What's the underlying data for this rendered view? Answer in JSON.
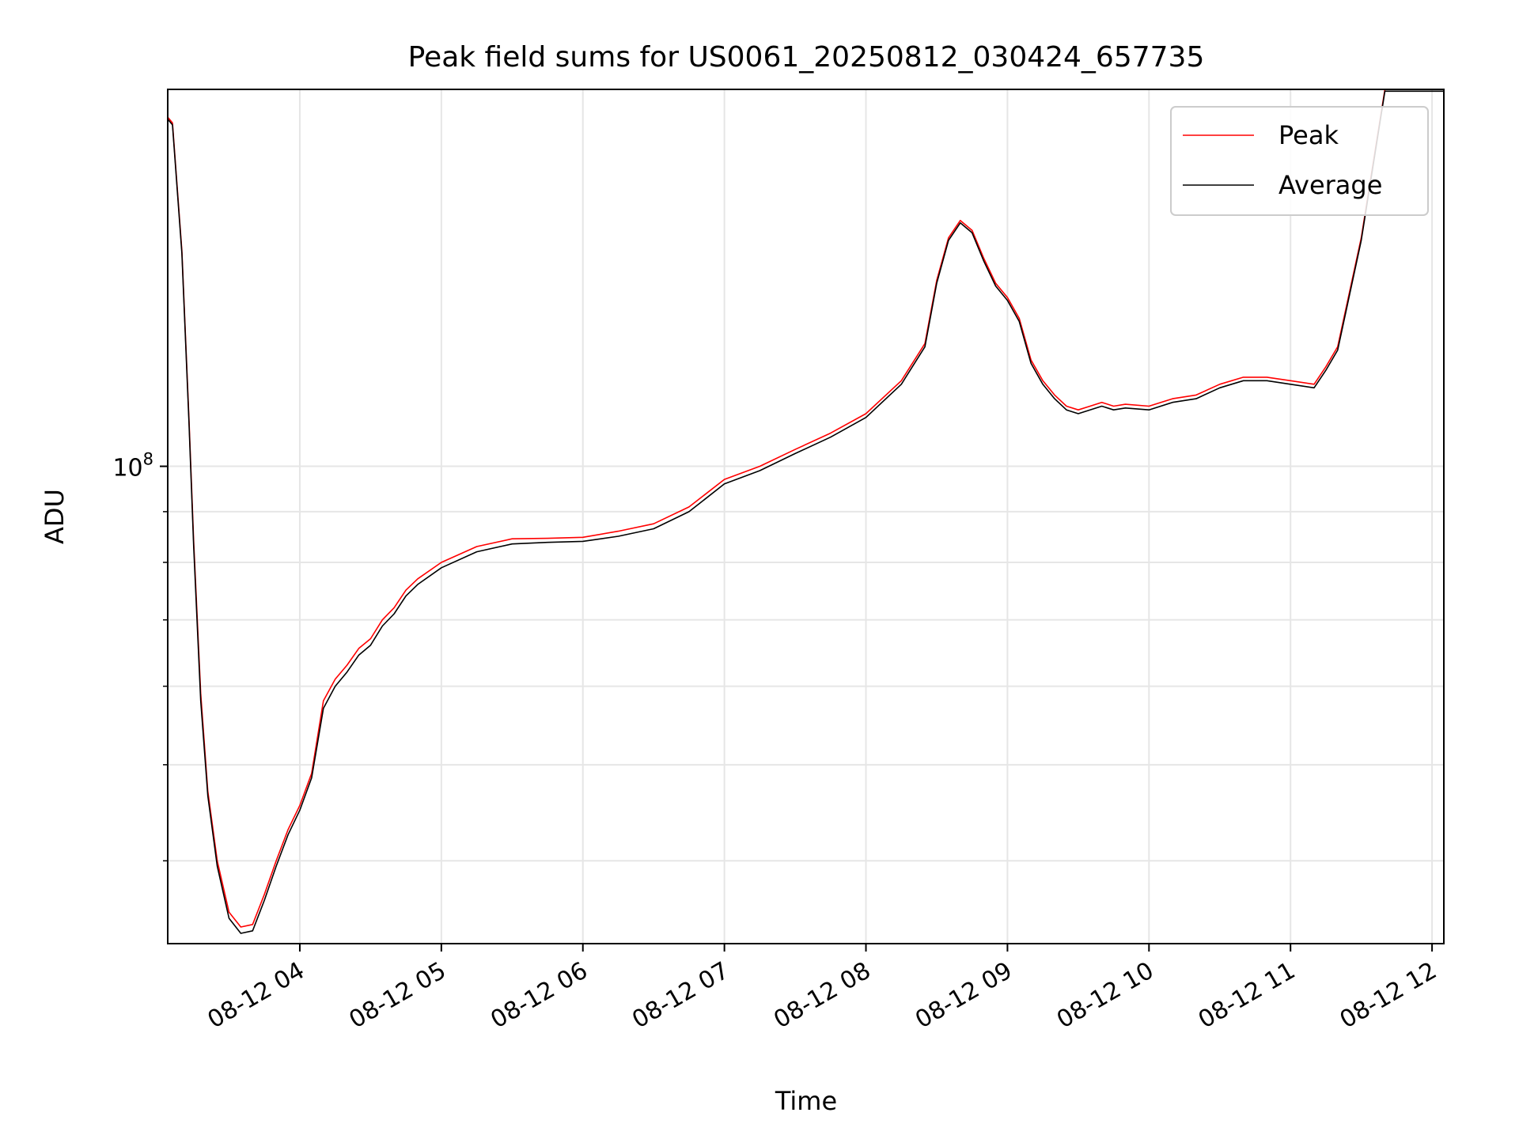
{
  "chart_data": {
    "type": "line",
    "title": "Peak field sums for US0061_20250812_030424_657735",
    "xlabel": "Time",
    "ylabel": "ADU",
    "yscale": "log",
    "ylim": [
      33000000,
      240000000
    ],
    "xlim": [
      "08-12 03:04",
      "08-12 12:05"
    ],
    "grid": true,
    "legend_position": "top-right",
    "x_ticks": [
      "08-12 04",
      "08-12 05",
      "08-12 06",
      "08-12 07",
      "08-12 08",
      "08-12 09",
      "08-12 10",
      "08-12 11",
      "08-12 12"
    ],
    "y_ticks": [
      {
        "value": 100000000,
        "base": "10",
        "exp": "8"
      }
    ],
    "y_minor_ticks": [
      40000000,
      50000000,
      60000000,
      70000000,
      80000000,
      90000000
    ],
    "series": [
      {
        "name": "Peak",
        "color": "#ff0000",
        "x": [
          "08-12 03:04",
          "08-12 03:06",
          "08-12 03:10",
          "08-12 03:13",
          "08-12 03:15",
          "08-12 03:18",
          "08-12 03:21",
          "08-12 03:25",
          "08-12 03:30",
          "08-12 03:35",
          "08-12 03:40",
          "08-12 03:45",
          "08-12 03:50",
          "08-12 03:55",
          "08-12 04:00",
          "08-12 04:05",
          "08-12 04:10",
          "08-12 04:15",
          "08-12 04:20",
          "08-12 04:25",
          "08-12 04:30",
          "08-12 04:35",
          "08-12 04:40",
          "08-12 04:45",
          "08-12 04:50",
          "08-12 05:00",
          "08-12 05:15",
          "08-12 05:30",
          "08-12 05:45",
          "08-12 06:00",
          "08-12 06:15",
          "08-12 06:30",
          "08-12 06:45",
          "08-12 07:00",
          "08-12 07:15",
          "08-12 07:30",
          "08-12 07:45",
          "08-12 08:00",
          "08-12 08:15",
          "08-12 08:25",
          "08-12 08:30",
          "08-12 08:35",
          "08-12 08:40",
          "08-12 08:45",
          "08-12 08:50",
          "08-12 08:55",
          "08-12 09:00",
          "08-12 09:05",
          "08-12 09:10",
          "08-12 09:15",
          "08-12 09:20",
          "08-12 09:25",
          "08-12 09:30",
          "08-12 09:35",
          "08-12 09:40",
          "08-12 09:45",
          "08-12 09:50",
          "08-12 10:00",
          "08-12 10:10",
          "08-12 10:20",
          "08-12 10:30",
          "08-12 10:40",
          "08-12 10:50",
          "08-12 11:00",
          "08-12 11:10",
          "08-12 11:15",
          "08-12 11:20",
          "08-12 11:30",
          "08-12 11:40",
          "08-12 11:45",
          "08-12 11:50",
          "08-12 11:55",
          "08-12 12:00",
          "08-12 12:05"
        ],
        "values": [
          225000000,
          222000000,
          165000000,
          112000000,
          84000000,
          59000000,
          47000000,
          40000000,
          35500000,
          34300000,
          34500000,
          37000000,
          40000000,
          43000000,
          45500000,
          49000000,
          58000000,
          61000000,
          63000000,
          65500000,
          67000000,
          70000000,
          72000000,
          75000000,
          77000000,
          80000000,
          83000000,
          84500000,
          84600000,
          84800000,
          86000000,
          87500000,
          91000000,
          97000000,
          100000000,
          104000000,
          108000000,
          113000000,
          122000000,
          133000000,
          154000000,
          170000000,
          177000000,
          173000000,
          162000000,
          153000000,
          148000000,
          141000000,
          128000000,
          122000000,
          118000000,
          115000000,
          114000000,
          115000000,
          116000000,
          115000000,
          115500000,
          115000000,
          117000000,
          118000000,
          121000000,
          123000000,
          123000000,
          122000000,
          121000000,
          126000000,
          132000000,
          170000000,
          240000000,
          240000000,
          240000000,
          240000000,
          240000000,
          240000000
        ]
      },
      {
        "name": "Average",
        "color": "#000000",
        "x": [
          "08-12 03:04",
          "08-12 03:06",
          "08-12 03:10",
          "08-12 03:13",
          "08-12 03:15",
          "08-12 03:18",
          "08-12 03:21",
          "08-12 03:25",
          "08-12 03:30",
          "08-12 03:35",
          "08-12 03:40",
          "08-12 03:45",
          "08-12 03:50",
          "08-12 03:55",
          "08-12 04:00",
          "08-12 04:05",
          "08-12 04:10",
          "08-12 04:15",
          "08-12 04:20",
          "08-12 04:25",
          "08-12 04:30",
          "08-12 04:35",
          "08-12 04:40",
          "08-12 04:45",
          "08-12 04:50",
          "08-12 05:00",
          "08-12 05:15",
          "08-12 05:30",
          "08-12 05:45",
          "08-12 06:00",
          "08-12 06:15",
          "08-12 06:30",
          "08-12 06:45",
          "08-12 07:00",
          "08-12 07:15",
          "08-12 07:30",
          "08-12 07:45",
          "08-12 08:00",
          "08-12 08:15",
          "08-12 08:25",
          "08-12 08:30",
          "08-12 08:35",
          "08-12 08:40",
          "08-12 08:45",
          "08-12 08:50",
          "08-12 08:55",
          "08-12 09:00",
          "08-12 09:05",
          "08-12 09:10",
          "08-12 09:15",
          "08-12 09:20",
          "08-12 09:25",
          "08-12 09:30",
          "08-12 09:35",
          "08-12 09:40",
          "08-12 09:45",
          "08-12 09:50",
          "08-12 10:00",
          "08-12 10:10",
          "08-12 10:20",
          "08-12 10:30",
          "08-12 10:40",
          "08-12 10:50",
          "08-12 11:00",
          "08-12 11:10",
          "08-12 11:15",
          "08-12 11:20",
          "08-12 11:30",
          "08-12 11:40",
          "08-12 11:45",
          "08-12 11:50",
          "08-12 11:55",
          "08-12 12:00",
          "08-12 12:05"
        ],
        "values": [
          224000000,
          221000000,
          164000000,
          111000000,
          83000000,
          58000000,
          46500000,
          39500000,
          35000000,
          33800000,
          34000000,
          36500000,
          39500000,
          42500000,
          45000000,
          48500000,
          57000000,
          60000000,
          62000000,
          64500000,
          66000000,
          69000000,
          71000000,
          74000000,
          76000000,
          79000000,
          82000000,
          83500000,
          83800000,
          84000000,
          85000000,
          86500000,
          90000000,
          96000000,
          99000000,
          103000000,
          107000000,
          112000000,
          121000000,
          132000000,
          153000000,
          169000000,
          176000000,
          172000000,
          161000000,
          152000000,
          147000000,
          140000000,
          127000000,
          121000000,
          117000000,
          114000000,
          113000000,
          114000000,
          115000000,
          114000000,
          114500000,
          114000000,
          116000000,
          117000000,
          120000000,
          122000000,
          122000000,
          121000000,
          120000000,
          125000000,
          131000000,
          169000000,
          239000000,
          239000000,
          239000000,
          239000000,
          239000000,
          239000000
        ]
      }
    ]
  }
}
